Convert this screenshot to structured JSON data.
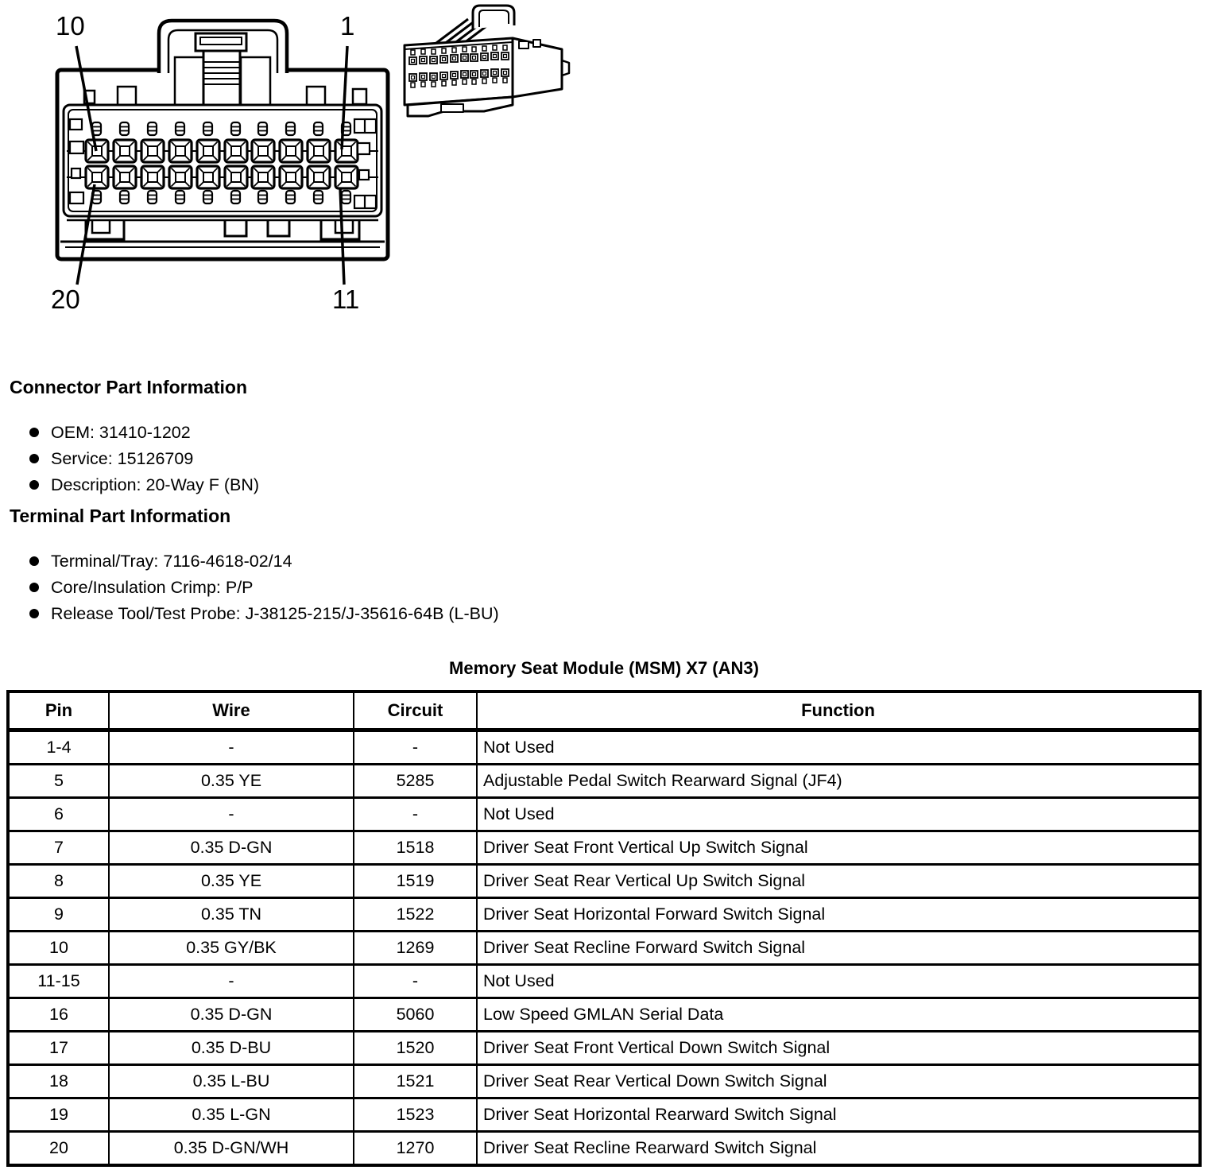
{
  "page": {
    "background": "#ffffff",
    "ink": "#000000"
  },
  "connector_diagram": {
    "pins_per_row": 10,
    "rows": 2,
    "pin_labels": {
      "top_left": "10",
      "top_right": "1",
      "bottom_left": "20",
      "bottom_right": "11"
    }
  },
  "connector_part_information": {
    "heading": "Connector Part Information",
    "items": [
      "OEM: 31410-1202",
      "Service: 15126709",
      "Description: 20-Way F (BN)"
    ]
  },
  "terminal_part_information": {
    "heading": "Terminal Part Information",
    "items": [
      "Terminal/Tray: 7116-4618-02/14",
      "Core/Insulation Crimp: P/P",
      "Release Tool/Test Probe: J-38125-215/J-35616-64B (L-BU)"
    ]
  },
  "table": {
    "title": "Memory Seat Module (MSM) X7 (AN3)",
    "headers": [
      "Pin",
      "Wire",
      "Circuit",
      "Function"
    ],
    "rows": [
      [
        "1-4",
        "-",
        "-",
        "Not Used"
      ],
      [
        "5",
        "0.35 YE",
        "5285",
        "Adjustable Pedal Switch Rearward Signal (JF4)"
      ],
      [
        "6",
        "-",
        "-",
        "Not Used"
      ],
      [
        "7",
        "0.35 D-GN",
        "1518",
        "Driver Seat Front Vertical Up Switch Signal"
      ],
      [
        "8",
        "0.35 YE",
        "1519",
        "Driver Seat Rear Vertical Up Switch Signal"
      ],
      [
        "9",
        "0.35 TN",
        "1522",
        "Driver Seat Horizontal Forward Switch Signal"
      ],
      [
        "10",
        "0.35 GY/BK",
        "1269",
        "Driver Seat Recline Forward Switch Signal"
      ],
      [
        "11-15",
        "-",
        "-",
        "Not Used"
      ],
      [
        "16",
        "0.35 D-GN",
        "5060",
        "Low Speed GMLAN Serial Data"
      ],
      [
        "17",
        "0.35 D-BU",
        "1520",
        "Driver Seat Front Vertical Down Switch Signal"
      ],
      [
        "18",
        "0.35 L-BU",
        "1521",
        "Driver Seat Rear Vertical Down Switch Signal"
      ],
      [
        "19",
        "0.35 L-GN",
        "1523",
        "Driver Seat Horizontal Rearward Switch Signal"
      ],
      [
        "20",
        "0.35 D-GN/WH",
        "1270",
        "Driver Seat Recline Rearward Switch Signal"
      ]
    ]
  }
}
